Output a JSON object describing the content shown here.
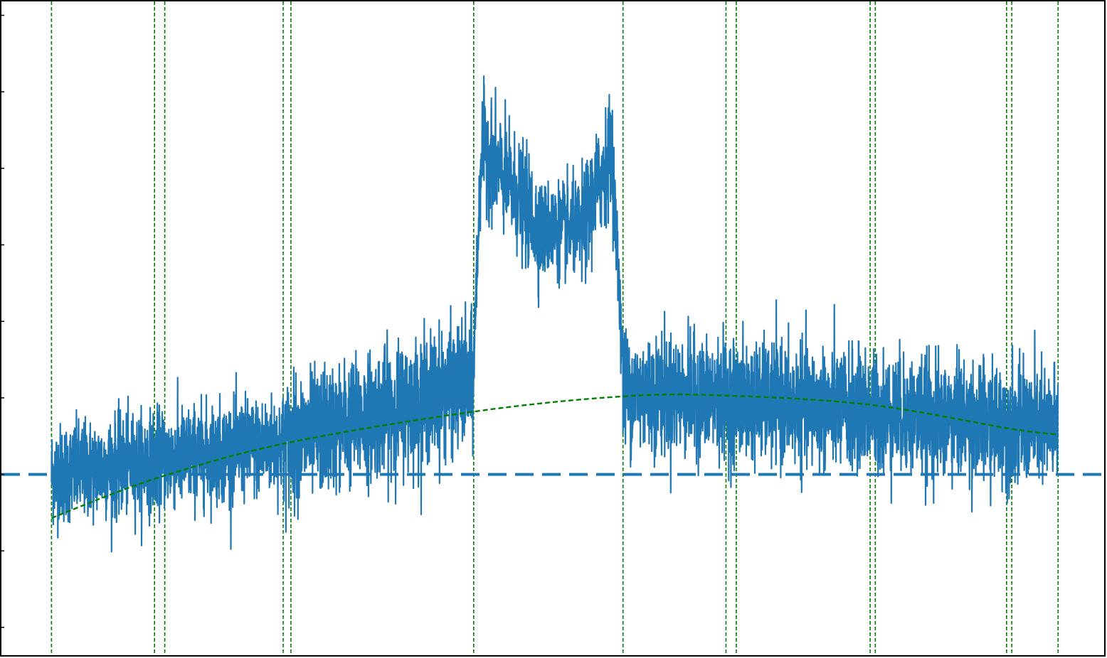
{
  "chart_data": {
    "type": "line",
    "title": "",
    "xlabel": "",
    "ylabel": "",
    "x_range": [
      -1.0,
      20.5
    ],
    "y_range": [
      -2.4,
      6.2
    ],
    "y_ticks": [
      -2,
      -1,
      0,
      1,
      2,
      3,
      4,
      5,
      6
    ],
    "tick_labels_visible": false,
    "grid": false,
    "legend": "none",
    "colors": {
      "signal": "#1f77b4",
      "baseline": "#1f77b4",
      "fit": "#008000",
      "markers": "#008000",
      "axes": "#000000"
    },
    "baseline": {
      "y": 0.0,
      "style": "dashed"
    },
    "vertical_markers": [
      0.0,
      2.0,
      2.2,
      4.5,
      4.65,
      8.2,
      11.1,
      13.1,
      13.3,
      15.9,
      16.0,
      18.55,
      18.65,
      19.55
    ],
    "fit_curve": {
      "style": "dashed",
      "x": [
        0.0,
        2.0,
        4.5,
        8.2,
        11.1,
        13.1,
        15.9,
        18.6,
        19.55
      ],
      "y": [
        -0.57,
        -0.06,
        0.4,
        0.82,
        1.02,
        1.03,
        0.91,
        0.6,
        0.52
      ]
    },
    "series": [
      {
        "style": "noisy-line",
        "segments": [
          {
            "x": [
              0.0,
              4.5
            ],
            "y": [
              0.0,
              0.4
            ],
            "noise": 0.32
          },
          {
            "x": [
              4.5,
              8.2
            ],
            "y": [
              0.4,
              1.2
            ],
            "noise": 0.4
          },
          {
            "x": [
              8.2,
              8.35
            ],
            "y": [
              1.5,
              4.3
            ],
            "noise": 0.3
          },
          {
            "x": [
              8.35,
              9.5
            ],
            "y": [
              4.3,
              3.2
            ],
            "noise": 0.35
          },
          {
            "x": [
              9.5,
              10.3
            ],
            "y": [
              3.2,
              3.2
            ],
            "noise": 0.3
          },
          {
            "x": [
              10.3,
              10.9
            ],
            "y": [
              3.2,
              4.3
            ],
            "noise": 0.35
          },
          {
            "x": [
              10.9,
              11.1
            ],
            "y": [
              4.0,
              1.5
            ],
            "noise": 0.3
          },
          {
            "x": [
              11.1,
              19.55
            ],
            "y": [
              1.1,
              0.6
            ],
            "noise": 0.38
          }
        ],
        "y_max": 5.8,
        "y_min": -2.0
      }
    ]
  }
}
